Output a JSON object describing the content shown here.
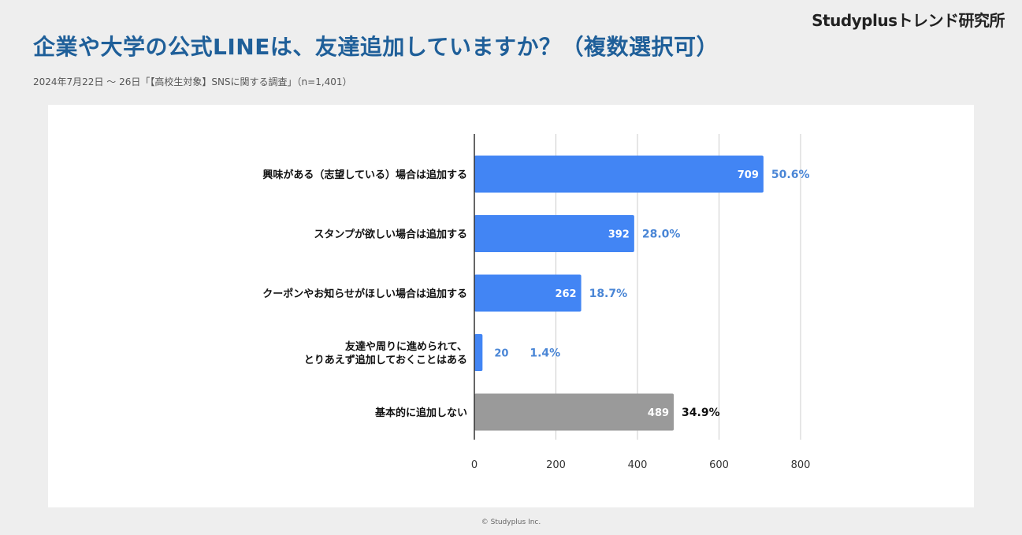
{
  "brand": "Studyplusトレンド研究所",
  "title": "企業や大学の公式LINEは、友達追加していますか？（複数選択可）",
  "subtitle": "2024年7月22日 〜 26日「【高校生対象】SNSに関する調査」（n=1,401）",
  "footer": "© Studyplus Inc.",
  "colors": {
    "primary_bar": "#4285f4",
    "neutral_bar": "#9a9a9a",
    "pct_primary": "#4a86d6",
    "pct_neutral": "#111111"
  },
  "chart_data": {
    "type": "bar",
    "orientation": "horizontal",
    "title": "",
    "xlabel": "",
    "ylabel": "",
    "xlim": [
      0,
      800
    ],
    "x_ticks": [
      0,
      200,
      400,
      600,
      800
    ],
    "grid": true,
    "legend": "none",
    "categories": [
      "興味がある（志望している）場合は追加する",
      "スタンプが欲しい場合は追加する",
      "クーポンやお知らせがほしい場合は追加する",
      "友達や周りに進められて、\nとりあえず追加しておくことはある",
      "基本的に追加しない"
    ],
    "values": [
      709,
      392,
      262,
      20,
      489
    ],
    "value_labels": [
      "709",
      "392",
      "262",
      "20",
      "489"
    ],
    "percent_labels": [
      "50.6%",
      "28.0%",
      "18.7%",
      "1.4%",
      "34.9%"
    ],
    "bar_colors": [
      "primary",
      "primary",
      "primary",
      "primary",
      "neutral"
    ]
  }
}
